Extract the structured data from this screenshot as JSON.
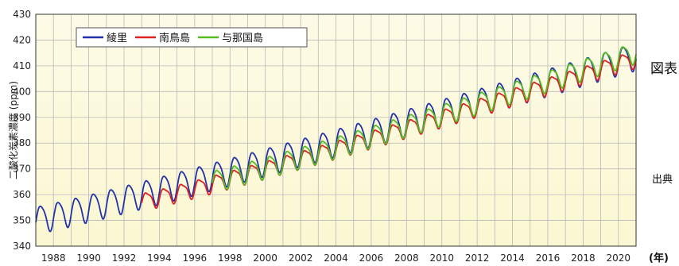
{
  "side_labels": {
    "figure": "図表",
    "source": "出典"
  },
  "chart_data": {
    "type": "line",
    "ylabel": "二酸化炭素濃度 (ppm)",
    "xunit": "(年)",
    "xlim": [
      1987,
      2021
    ],
    "ylim": [
      340,
      430
    ],
    "yticks": [
      340,
      350,
      360,
      370,
      380,
      390,
      400,
      410,
      420,
      430
    ],
    "xticks": [
      1988,
      1990,
      1992,
      1994,
      1996,
      1998,
      2000,
      2002,
      2004,
      2006,
      2008,
      2010,
      2012,
      2014,
      2016,
      2018,
      2020
    ],
    "grid": true,
    "legend": "top-left",
    "series": [
      {
        "name": "綾里",
        "color": "#2233aa",
        "start_year": 1987.0,
        "end_year": 2021.0,
        "trend_start": 350.5,
        "trend_end": 414.0,
        "amplitude": 5.2
      },
      {
        "name": "南鳥島",
        "color": "#dd2222",
        "start_year": 1993.0,
        "end_year": 2021.0,
        "trend_start": 357.5,
        "trend_end": 413.0,
        "amplitude": 3.2
      },
      {
        "name": "与那国島",
        "color": "#55bb22",
        "start_year": 1997.0,
        "end_year": 2021.0,
        "trend_start": 365.5,
        "trend_end": 415.5,
        "amplitude": 4.0
      }
    ]
  }
}
